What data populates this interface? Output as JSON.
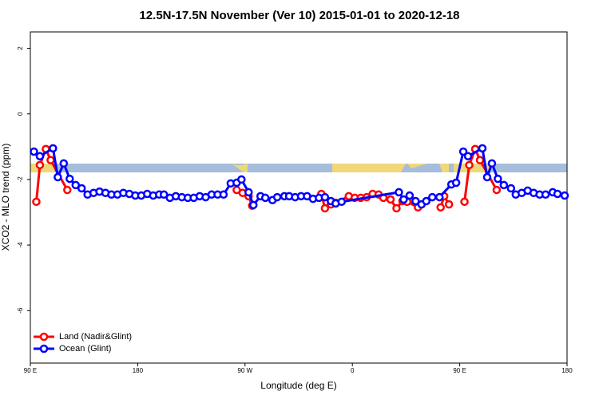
{
  "chart_data": {
    "type": "line",
    "title": "12.5N-17.5N November (Ver 10)   2015-01-01 to 2020-12-18",
    "x_label": "Longitude (deg E)",
    "y_label": "XCO2 - MLO trend (ppm)",
    "xlim": [
      90,
      540
    ],
    "ylim": [
      -7.6,
      2.5
    ],
    "xticks": [
      {
        "value": 90,
        "label": "90 E"
      },
      180,
      {
        "value": 270,
        "label": "90 W"
      },
      {
        "value": 360,
        "label": "0"
      },
      {
        "value": 450,
        "label": "90 E"
      },
      {
        "value": 540,
        "label": "180"
      }
    ],
    "yticks": [
      -6,
      -4,
      -2,
      0,
      2
    ],
    "legend": "bottom-left",
    "series": [
      {
        "name": "Land (Nadir&Glint)",
        "color": "#ff0000",
        "x": [
          95,
          98,
          103,
          107,
          121,
          null,
          263,
          268,
          273,
          276,
          null,
          334,
          337,
          342,
          346,
          357,
          362,
          367,
          372,
          377,
          382,
          386,
          392,
          397,
          402,
          406,
          415,
          null,
          434,
          437,
          441,
          null,
          454,
          458,
          463,
          467,
          481
        ],
        "values": [
          -2.68,
          -1.56,
          -1.07,
          -1.41,
          -2.32,
          null,
          -2.32,
          -2.41,
          -2.51,
          -2.8,
          null,
          -2.44,
          -2.88,
          -2.76,
          -2.71,
          -2.51,
          -2.56,
          -2.56,
          -2.54,
          -2.44,
          -2.46,
          -2.56,
          -2.61,
          -2.88,
          -2.66,
          -2.68,
          -2.85,
          null,
          -2.85,
          -2.51,
          -2.76,
          null,
          -2.68,
          -1.56,
          -1.07,
          -1.41,
          -2.32
        ]
      },
      {
        "name": "Ocean (Glint)",
        "color": "#0000ff",
        "x": [
          93,
          98,
          109,
          113,
          118,
          123,
          128,
          133,
          138,
          143,
          148,
          153,
          158,
          163,
          168,
          173,
          178,
          183,
          188,
          193,
          198,
          202,
          207,
          212,
          217,
          222,
          227,
          232,
          237,
          242,
          247,
          252,
          258,
          263,
          267,
          273,
          277,
          283,
          287,
          293,
          297,
          303,
          307,
          312,
          317,
          322,
          327,
          332,
          337,
          342,
          346,
          351,
          399,
          403,
          408,
          413,
          418,
          422,
          427,
          433,
          443,
          447,
          453,
          457,
          469,
          473,
          477,
          482,
          487,
          493,
          497,
          502,
          507,
          512,
          517,
          522,
          528,
          532,
          538
        ],
        "values": [
          -1.15,
          -1.29,
          -1.05,
          -1.93,
          -1.51,
          -1.98,
          -2.17,
          -2.27,
          -2.46,
          -2.41,
          -2.37,
          -2.41,
          -2.46,
          -2.46,
          -2.41,
          -2.44,
          -2.49,
          -2.49,
          -2.44,
          -2.49,
          -2.46,
          -2.46,
          -2.56,
          -2.51,
          -2.54,
          -2.56,
          -2.56,
          -2.51,
          -2.54,
          -2.46,
          -2.46,
          -2.46,
          -2.12,
          -2.1,
          -2.0,
          -2.39,
          -2.78,
          -2.51,
          -2.56,
          -2.63,
          -2.54,
          -2.51,
          -2.51,
          -2.54,
          -2.51,
          -2.51,
          -2.59,
          -2.56,
          -2.54,
          -2.66,
          -2.73,
          -2.68,
          -2.39,
          -2.61,
          -2.49,
          -2.66,
          -2.76,
          -2.66,
          -2.54,
          -2.54,
          -2.15,
          -2.1,
          -1.15,
          -1.29,
          -1.05,
          -1.93,
          -1.51,
          -1.98,
          -2.17,
          -2.27,
          -2.46,
          -2.41,
          -2.34,
          -2.41,
          -2.46,
          -2.46,
          -2.39,
          -2.44,
          -2.49
        ]
      }
    ]
  }
}
